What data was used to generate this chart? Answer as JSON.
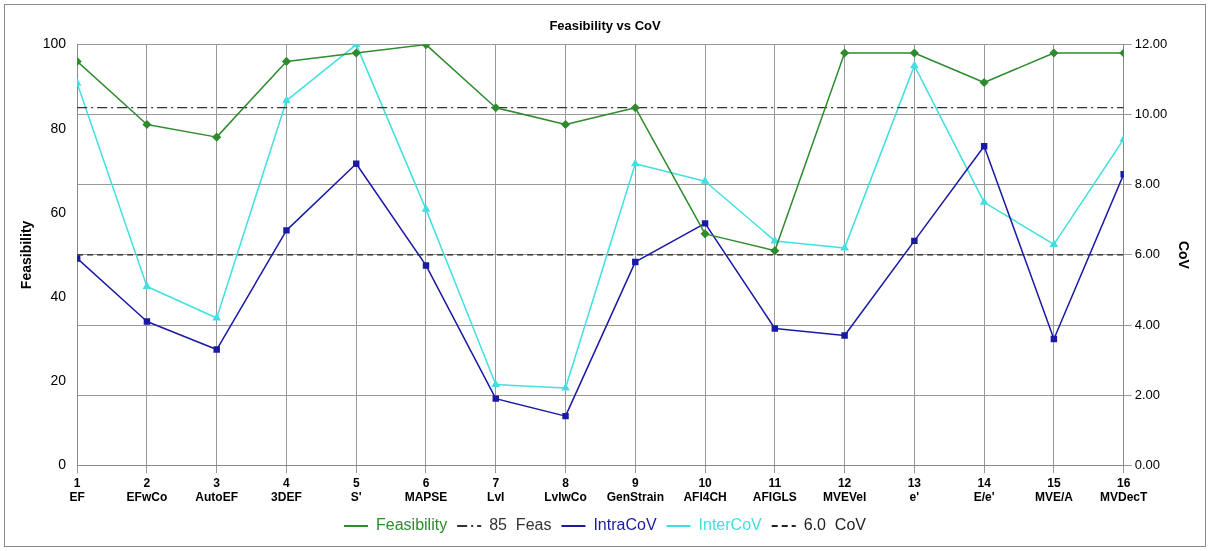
{
  "chart_data": {
    "type": "line",
    "title": "Feasibility vs CoV",
    "ylabel": "Feasibility",
    "y2label": "CoV",
    "xlim": [
      1,
      16
    ],
    "xticks": [
      {
        "value": 1,
        "label": "1\nEF"
      },
      {
        "value": 2,
        "label": "2\nEFwCo"
      },
      {
        "value": 3,
        "label": "3\nAutoEF"
      },
      {
        "value": 4,
        "label": "4\n3DEF"
      },
      {
        "value": 5,
        "label": "5\nS'"
      },
      {
        "value": 6,
        "label": "6\nMAPSE"
      },
      {
        "value": 7,
        "label": "7\nLvI"
      },
      {
        "value": 8,
        "label": "8\nLvIwCo"
      },
      {
        "value": 9,
        "label": "9\nGenStrain"
      },
      {
        "value": 10,
        "label": "10\nAFI4CH"
      },
      {
        "value": 11,
        "label": "11\nAFIGLS"
      },
      {
        "value": 12,
        "label": "12\nMVEVel"
      },
      {
        "value": 13,
        "label": "13\ne'"
      },
      {
        "value": 14,
        "label": "14\nE/e'"
      },
      {
        "value": 15,
        "label": "15\nMVE/A"
      },
      {
        "value": 16,
        "label": "16\nMVDecT"
      }
    ],
    "ylim": [
      0,
      100
    ],
    "yticks": [
      0,
      20,
      40,
      60,
      80,
      100
    ],
    "y2lim": [
      0,
      12
    ],
    "y2ticks": [
      {
        "value": 0,
        "label": "0.00"
      },
      {
        "value": 2,
        "label": "2.00"
      },
      {
        "value": 4,
        "label": "4.00"
      },
      {
        "value": 6,
        "label": "6.00"
      },
      {
        "value": 8,
        "label": "8.00"
      },
      {
        "value": 10,
        "label": "10.00"
      },
      {
        "value": 12,
        "label": "12.00"
      }
    ],
    "series": [
      {
        "name": "Feasibility",
        "color": "#2e8b2e",
        "marker": "diamond",
        "x": [
          1,
          2,
          3,
          4,
          5,
          6,
          7,
          8,
          9,
          10,
          11,
          12,
          13,
          14,
          15,
          16
        ],
        "values": [
          96,
          81,
          78,
          96,
          98,
          100,
          85,
          81,
          85,
          55,
          51,
          98,
          98,
          91,
          98,
          98
        ]
      },
      {
        "name": "IntraCoV",
        "color": "#1a1aa6",
        "marker": "square",
        "axis": "y2",
        "x": [
          1,
          2,
          3,
          4,
          5,
          6,
          7,
          8,
          9,
          10,
          11,
          12,
          13,
          14,
          15,
          16
        ],
        "values": [
          5.9,
          4.1,
          3.3,
          6.7,
          8.6,
          5.7,
          1.9,
          1.4,
          5.8,
          6.9,
          3.9,
          3.7,
          6.4,
          9.1,
          3.6,
          8.3
        ]
      },
      {
        "name": "InterCoV",
        "color": "#40e0e0",
        "marker": "triangle",
        "axis": "y2",
        "x": [
          1,
          2,
          3,
          4,
          5,
          6,
          7,
          8,
          9,
          10,
          11,
          12,
          13,
          14,
          15,
          16
        ],
        "values": [
          10.9,
          5.1,
          4.2,
          10.4,
          12.0,
          7.3,
          2.3,
          2.2,
          8.6,
          8.1,
          6.4,
          6.2,
          11.4,
          7.5,
          6.3,
          9.3
        ]
      }
    ],
    "ref_lines": [
      {
        "axis": "y",
        "value": 85,
        "label": "85  Feas",
        "color": "#333333",
        "line_style": "dashdot"
      },
      {
        "axis": "y2",
        "value": 6,
        "label": "6.0  CoV",
        "color": "#222222",
        "line_style": "dashed"
      }
    ],
    "grid": true,
    "legend": "bottom"
  }
}
